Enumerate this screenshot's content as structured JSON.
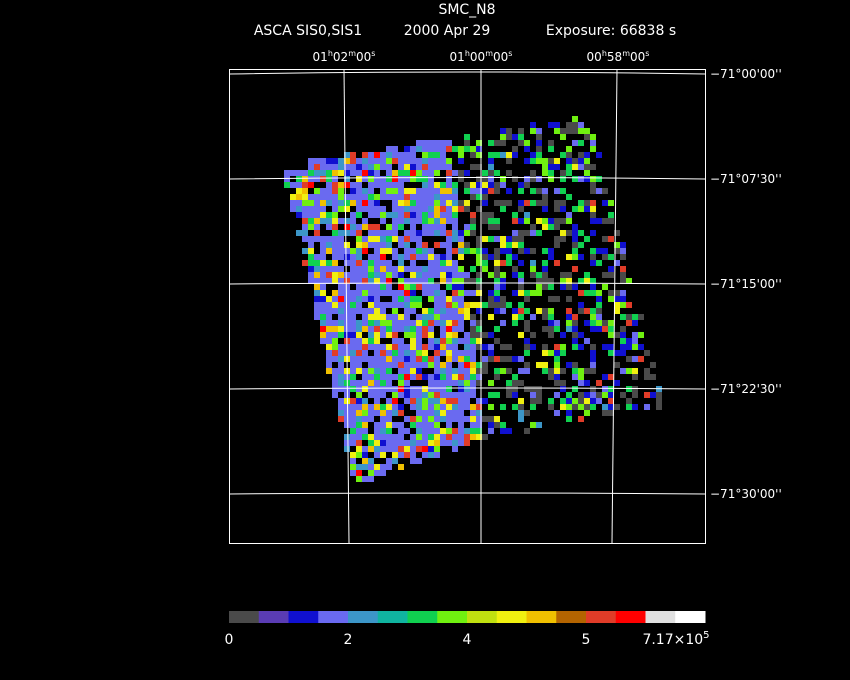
{
  "header": {
    "title": "SMC_N8",
    "instrument": "ASCA SIS0,SIS1",
    "date": "2000 Apr 29",
    "exposure": "Exposure: 66838 s"
  },
  "ra_labels": [
    [
      "01",
      "h",
      "02",
      "m",
      "00",
      "s"
    ],
    [
      "01",
      "h",
      "00",
      "m",
      "00",
      "s"
    ],
    [
      "00",
      "h",
      "58",
      "m",
      "00",
      "s"
    ]
  ],
  "dec_labels": [
    "−71°00'00''",
    "−71°07'30''",
    "−71°15'00''",
    "−71°22'30''",
    "−71°30'00''"
  ],
  "colorbar": {
    "colors": [
      "#4a4a4a",
      "#5a3cb4",
      "#1010d0",
      "#6a6af0",
      "#3c96c8",
      "#10b4a0",
      "#10d050",
      "#70f010",
      "#c0e010",
      "#f0f010",
      "#f0c000",
      "#b46400",
      "#e03c28",
      "#ff0000",
      "#e0e0e0",
      "#ffffff"
    ],
    "labels": [
      "0",
      "2",
      "4",
      "5"
    ],
    "last_label": {
      "mantissa": "7.17×10",
      "exponent": "5"
    }
  }
}
